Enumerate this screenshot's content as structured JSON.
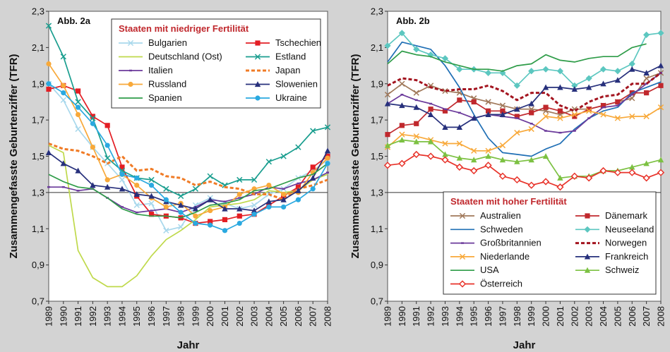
{
  "chart_data": [
    {
      "type": "line",
      "panel_label": "Abb. 2a",
      "legend_title": "Staaten mit niedriger Fertilität",
      "ylabel": "Zusammengefasste Geburtenziffer (TFR)",
      "xlabel": "Jahr",
      "ylim": [
        0.7,
        2.3
      ],
      "yticks": [
        "0,7",
        "0,9",
        "1,1",
        "1,3",
        "1,5",
        "1,7",
        "1,9",
        "2,1",
        "2,3"
      ],
      "x": [
        1989,
        1990,
        1991,
        1992,
        1993,
        1994,
        1995,
        1996,
        1997,
        1998,
        1999,
        2000,
        2001,
        2002,
        2003,
        2004,
        2005,
        2006,
        2007,
        2008
      ],
      "reference_line": 1.3,
      "series": [
        {
          "name": "Bulgarien",
          "color": "#a8d8ec",
          "marker": "x",
          "dash": "",
          "values": [
            1.9,
            1.81,
            1.65,
            1.55,
            1.46,
            1.37,
            1.23,
            1.24,
            1.09,
            1.11,
            1.23,
            1.27,
            1.24,
            1.21,
            1.23,
            1.29,
            1.32,
            1.38,
            1.42,
            1.48
          ]
        },
        {
          "name": "Tschechien",
          "color": "#e31e24",
          "marker": "square",
          "dash": "",
          "values": [
            1.87,
            1.89,
            1.86,
            1.72,
            1.67,
            1.44,
            1.28,
            1.18,
            1.17,
            1.16,
            1.13,
            1.14,
            1.15,
            1.17,
            1.18,
            1.23,
            1.28,
            1.33,
            1.44,
            1.5
          ]
        },
        {
          "name": "Deutschland (Ost)",
          "color": "#bfd94b",
          "marker": "none",
          "dash": "",
          "values": [
            1.56,
            1.52,
            0.98,
            0.83,
            0.78,
            0.78,
            0.84,
            0.95,
            1.04,
            1.09,
            1.15,
            1.22,
            1.23,
            1.24,
            1.26,
            1.31,
            1.3,
            1.31,
            1.37,
            1.4
          ]
        },
        {
          "name": "Estland",
          "color": "#1a9e8f",
          "marker": "x",
          "dash": "",
          "values": [
            2.22,
            2.05,
            1.8,
            1.71,
            1.49,
            1.42,
            1.38,
            1.37,
            1.32,
            1.28,
            1.32,
            1.39,
            1.34,
            1.37,
            1.37,
            1.47,
            1.5,
            1.55,
            1.64,
            1.66
          ]
        },
        {
          "name": "Italien",
          "color": "#6b3a9b",
          "marker": "dash",
          "dash": "",
          "values": [
            1.33,
            1.33,
            1.31,
            1.32,
            1.27,
            1.22,
            1.19,
            1.2,
            1.21,
            1.19,
            1.22,
            1.26,
            1.25,
            1.27,
            1.29,
            1.33,
            1.32,
            1.35,
            1.37,
            1.41
          ]
        },
        {
          "name": "Japan",
          "color": "#f07b26",
          "marker": "none",
          "dash": "5,3",
          "values": [
            1.57,
            1.54,
            1.53,
            1.5,
            1.46,
            1.5,
            1.42,
            1.43,
            1.39,
            1.38,
            1.34,
            1.36,
            1.33,
            1.32,
            1.29,
            1.29,
            1.26,
            1.32,
            1.34,
            1.37
          ]
        },
        {
          "name": "Russland",
          "color": "#f8a93a",
          "marker": "circle",
          "dash": "",
          "values": [
            2.01,
            1.89,
            1.73,
            1.55,
            1.37,
            1.4,
            1.34,
            1.27,
            1.22,
            1.24,
            1.17,
            1.2,
            1.22,
            1.29,
            1.32,
            1.34,
            1.29,
            1.3,
            1.41,
            1.49
          ]
        },
        {
          "name": "Slowenien",
          "color": "#27307c",
          "marker": "triangle",
          "dash": "",
          "values": [
            1.52,
            1.46,
            1.42,
            1.34,
            1.33,
            1.32,
            1.29,
            1.28,
            1.25,
            1.23,
            1.21,
            1.26,
            1.21,
            1.21,
            1.2,
            1.25,
            1.26,
            1.31,
            1.38,
            1.53
          ]
        },
        {
          "name": "Spanien",
          "color": "#2e9c48",
          "marker": "none",
          "dash": "",
          "values": [
            1.4,
            1.36,
            1.33,
            1.32,
            1.27,
            1.21,
            1.18,
            1.17,
            1.17,
            1.16,
            1.19,
            1.23,
            1.24,
            1.26,
            1.31,
            1.32,
            1.35,
            1.38,
            1.4,
            1.46
          ]
        },
        {
          "name": "Ukraine",
          "color": "#2aa9e0",
          "marker": "circle",
          "dash": "",
          "values": [
            1.9,
            1.85,
            1.77,
            1.68,
            1.56,
            1.4,
            1.38,
            1.34,
            1.26,
            1.19,
            1.13,
            1.12,
            1.09,
            1.13,
            1.18,
            1.22,
            1.22,
            1.26,
            1.32,
            1.46
          ]
        }
      ]
    },
    {
      "type": "line",
      "panel_label": "Abb. 2b",
      "legend_title": "Staaten mit hoher Fertilität",
      "ylabel": "Zusammengefasste Geburtenziffer (TFR)",
      "xlabel": "Jahr",
      "ylim": [
        0.7,
        2.3
      ],
      "yticks": [
        "0,7",
        "0,9",
        "1,1",
        "1,3",
        "1,5",
        "1,7",
        "1,9",
        "2,1",
        "2,3"
      ],
      "x": [
        1989,
        1990,
        1991,
        1992,
        1993,
        1994,
        1995,
        1996,
        1997,
        1998,
        1999,
        2000,
        2001,
        2002,
        2003,
        2004,
        2005,
        2006,
        2007,
        2008
      ],
      "reference_line": 1.3,
      "series": [
        {
          "name": "Australien",
          "color": "#a0785a",
          "marker": "x",
          "dash": "",
          "values": [
            1.84,
            1.9,
            1.85,
            1.89,
            1.86,
            1.85,
            1.82,
            1.8,
            1.78,
            1.76,
            1.76,
            1.75,
            1.73,
            1.76,
            1.76,
            1.78,
            1.8,
            1.82,
            1.93,
            1.96
          ]
        },
        {
          "name": "Dänemark",
          "color": "#c0282d",
          "marker": "square",
          "dash": "",
          "values": [
            1.62,
            1.67,
            1.68,
            1.76,
            1.75,
            1.81,
            1.8,
            1.75,
            1.75,
            1.72,
            1.74,
            1.77,
            1.75,
            1.72,
            1.76,
            1.78,
            1.8,
            1.85,
            1.85,
            1.89
          ]
        },
        {
          "name": "Schweden",
          "color": "#1f6fb5",
          "marker": "none",
          "dash": "",
          "values": [
            2.02,
            2.13,
            2.11,
            2.09,
            2.0,
            1.88,
            1.73,
            1.6,
            1.52,
            1.51,
            1.5,
            1.54,
            1.57,
            1.65,
            1.71,
            1.75,
            1.77,
            1.85,
            1.88,
            1.91
          ]
        },
        {
          "name": "Neuseeland",
          "color": "#5cc7c0",
          "marker": "diamond",
          "dash": "",
          "values": [
            2.11,
            2.18,
            2.09,
            2.06,
            2.04,
            1.98,
            1.98,
            1.96,
            1.96,
            1.89,
            1.97,
            1.98,
            1.97,
            1.89,
            1.93,
            1.98,
            1.97,
            2.01,
            2.17,
            2.18
          ]
        },
        {
          "name": "Großbritannien",
          "color": "#6b3a9b",
          "marker": "dash",
          "dash": "",
          "values": [
            1.79,
            1.84,
            1.81,
            1.79,
            1.76,
            1.74,
            1.71,
            1.73,
            1.72,
            1.71,
            1.68,
            1.64,
            1.63,
            1.64,
            1.71,
            1.77,
            1.78,
            1.84,
            1.9,
            1.96
          ]
        },
        {
          "name": "Norwegen",
          "color": "#a3141f",
          "marker": "none",
          "dash": "5,3",
          "values": [
            1.89,
            1.93,
            1.92,
            1.88,
            1.86,
            1.87,
            1.87,
            1.89,
            1.86,
            1.81,
            1.85,
            1.85,
            1.78,
            1.75,
            1.8,
            1.83,
            1.84,
            1.9,
            1.9,
            1.96
          ]
        },
        {
          "name": "Niederlande",
          "color": "#f8a93a",
          "marker": "x",
          "dash": "",
          "values": [
            1.55,
            1.62,
            1.61,
            1.59,
            1.57,
            1.57,
            1.53,
            1.53,
            1.56,
            1.63,
            1.65,
            1.72,
            1.71,
            1.73,
            1.75,
            1.73,
            1.71,
            1.72,
            1.72,
            1.77
          ]
        },
        {
          "name": "Frankreich",
          "color": "#27307c",
          "marker": "triangle",
          "dash": "",
          "values": [
            1.79,
            1.78,
            1.77,
            1.73,
            1.66,
            1.66,
            1.71,
            1.73,
            1.73,
            1.76,
            1.79,
            1.88,
            1.88,
            1.87,
            1.88,
            1.9,
            1.92,
            1.98,
            1.96,
            2.0
          ]
        },
        {
          "name": "USA",
          "color": "#2e9c48",
          "marker": "none",
          "dash": "",
          "values": [
            2.01,
            2.08,
            2.06,
            2.05,
            2.02,
            2.0,
            1.98,
            1.98,
            1.97,
            2.0,
            2.01,
            2.06,
            2.03,
            2.02,
            2.04,
            2.05,
            2.05,
            2.1,
            2.12,
            null
          ]
        },
        {
          "name": "Schweiz",
          "color": "#7cc142",
          "marker": "triangle",
          "dash": "",
          "values": [
            1.56,
            1.59,
            1.58,
            1.58,
            1.51,
            1.49,
            1.48,
            1.5,
            1.48,
            1.47,
            1.48,
            1.5,
            1.38,
            1.39,
            1.39,
            1.42,
            1.42,
            1.44,
            1.46,
            1.48
          ]
        },
        {
          "name": "Österreich",
          "color": "#e8332a",
          "marker": "opendiamond",
          "dash": "",
          "values": [
            1.45,
            1.46,
            1.51,
            1.5,
            1.48,
            1.44,
            1.42,
            1.45,
            1.39,
            1.37,
            1.34,
            1.36,
            1.33,
            1.39,
            1.38,
            1.42,
            1.41,
            1.41,
            1.38,
            1.41
          ]
        }
      ]
    }
  ]
}
